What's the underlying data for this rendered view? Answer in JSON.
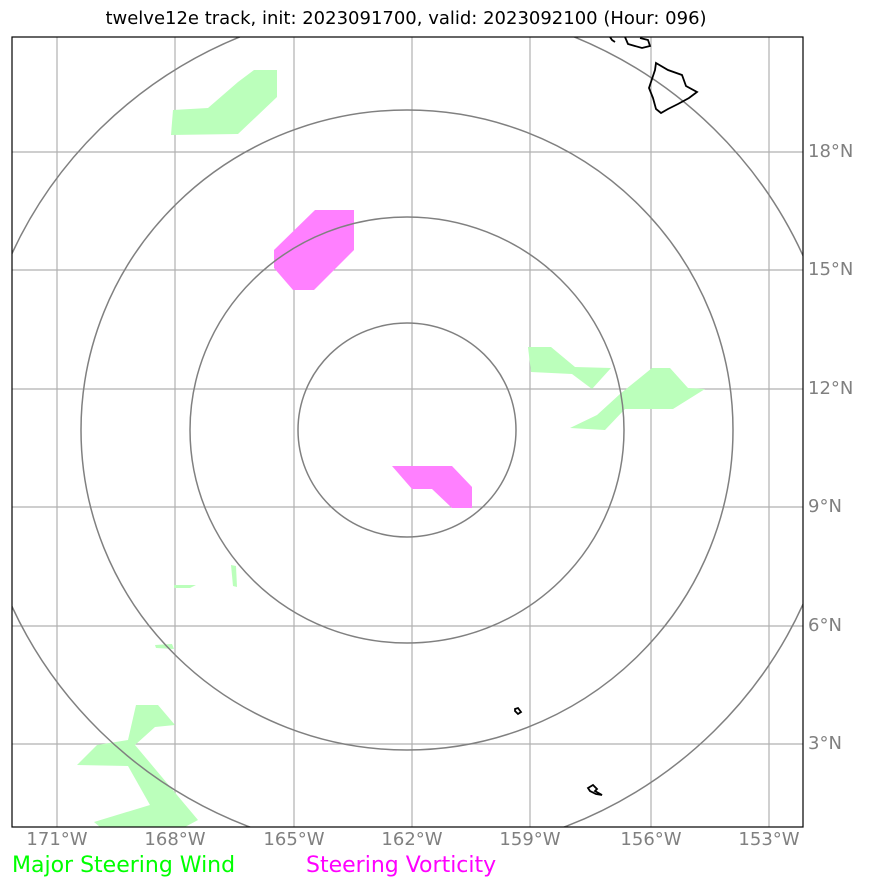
{
  "title": "twelve12e track, init: 2023091700, valid: 2023092100 (Hour: 096)",
  "latitude_labels": [
    "18°N",
    "15°N",
    "12°N",
    "9°N",
    "6°N",
    "3°N"
  ],
  "longitude_labels": [
    "171°W",
    "168°W",
    "165°W",
    "162°W",
    "159°W",
    "156°W",
    "153°W"
  ],
  "legend": {
    "wind_label": "Major Steering Wind",
    "wind_color": "#00ff00",
    "vorticity_label": "Steering Vorticity",
    "vorticity_color": "#ff00ff"
  },
  "colors": {
    "wind_fill": "#bbffbb",
    "vorticity_fill": "#ff80ff",
    "range_rings": "#808080",
    "gridlines": "#b0b0b0",
    "coastline": "#000000"
  }
}
